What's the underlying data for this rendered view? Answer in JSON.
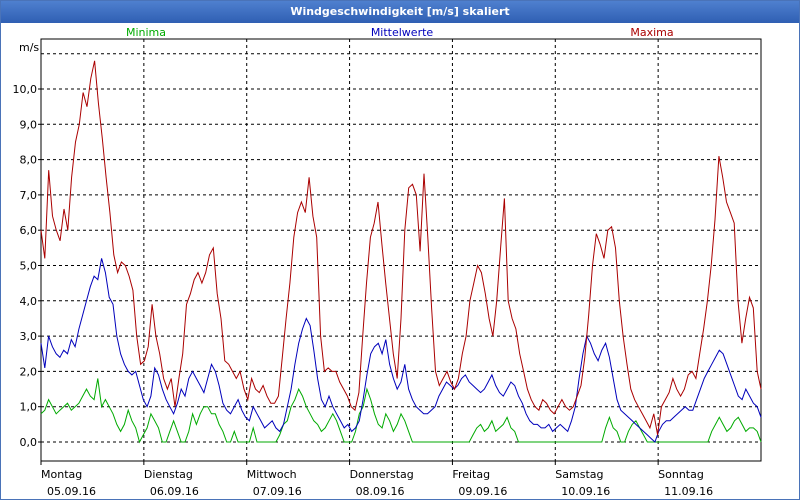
{
  "window": {
    "title": "Windgeschwindigkeit [m/s] skaliert"
  },
  "chart_data": {
    "type": "line",
    "title": "Windgeschwindigkeit [m/s] skaliert",
    "ylabel": "m/s",
    "ylim": [
      -0.6,
      11.5
    ],
    "xlim": [
      0,
      7
    ],
    "grid": true,
    "legend_placement": "top",
    "y_ticks": [
      "0,0",
      "1,0",
      "2,0",
      "3,0",
      "4,0",
      "5,0",
      "6,0",
      "7,0",
      "8,0",
      "9,0",
      "10,0"
    ],
    "x_ticks": [
      {
        "day": "Montag",
        "date": "05.09.16"
      },
      {
        "day": "Dienstag",
        "date": "06.09.16"
      },
      {
        "day": "Mittwoch",
        "date": "07.09.16"
      },
      {
        "day": "Donnerstag",
        "date": "08.09.16"
      },
      {
        "day": "Freitag",
        "date": "09.09.16"
      },
      {
        "day": "Samstag",
        "date": "10.09.16"
      },
      {
        "day": "Sonntag",
        "date": "11.09.16"
      }
    ],
    "series": [
      {
        "name": "Minima",
        "color": "#00aa00",
        "values": [
          0.8,
          0.9,
          1.2,
          1.0,
          0.8,
          0.9,
          1.0,
          1.1,
          0.9,
          1.0,
          1.1,
          1.3,
          1.5,
          1.3,
          1.2,
          1.8,
          1.0,
          1.2,
          1.0,
          0.8,
          0.5,
          0.3,
          0.5,
          0.9,
          0.6,
          0.4,
          0.0,
          0.2,
          0.4,
          0.8,
          0.6,
          0.4,
          0.0,
          0.0,
          0.3,
          0.6,
          0.3,
          0.0,
          0.0,
          0.3,
          0.8,
          0.5,
          0.8,
          1.0,
          1.0,
          0.8,
          0.8,
          0.5,
          0.3,
          0.0,
          0.0,
          0.3,
          0.0,
          0.0,
          0.0,
          0.0,
          0.4,
          0.0,
          0.0,
          0.0,
          0.0,
          0.0,
          0.0,
          0.2,
          0.5,
          0.6,
          1.0,
          1.2,
          1.5,
          1.3,
          1.0,
          0.8,
          0.6,
          0.5,
          0.3,
          0.4,
          0.6,
          0.8,
          0.6,
          0.3,
          0.0,
          0.0,
          0.0,
          0.3,
          0.8,
          1.0,
          1.5,
          1.2,
          0.8,
          0.5,
          0.4,
          0.8,
          0.6,
          0.3,
          0.5,
          0.8,
          0.6,
          0.3,
          0.0,
          0.0,
          0.0,
          0.0,
          0.0,
          0.0,
          0.0,
          0.0,
          0.0,
          0.0,
          0.0,
          0.0,
          0.0,
          0.0,
          0.0,
          0.0,
          0.2,
          0.4,
          0.5,
          0.3,
          0.4,
          0.6,
          0.3,
          0.4,
          0.5,
          0.7,
          0.4,
          0.3,
          0.0,
          0.0,
          0.0,
          0.0,
          0.0,
          0.0,
          0.0,
          0.0,
          0.0,
          0.0,
          0.0,
          0.0,
          0.0,
          0.0,
          0.0,
          0.0,
          0.0,
          0.0,
          0.0,
          0.0,
          0.0,
          0.0,
          0.0,
          0.4,
          0.7,
          0.4,
          0.3,
          0.0,
          0.0,
          0.3,
          0.5,
          0.6,
          0.4,
          0.2,
          0.0,
          0.0,
          0.0,
          0.0,
          0.0,
          0.0,
          0.0,
          0.0,
          0.0,
          0.0,
          0.0,
          0.0,
          0.0,
          0.0,
          0.0,
          0.0,
          0.0,
          0.3,
          0.5,
          0.7,
          0.5,
          0.3,
          0.4,
          0.6,
          0.7,
          0.5,
          0.3,
          0.4,
          0.4,
          0.3,
          0.0
        ]
      },
      {
        "name": "Mittelwerte",
        "color": "#0000bb",
        "values": [
          2.8,
          2.1,
          3.0,
          2.7,
          2.5,
          2.4,
          2.6,
          2.5,
          2.9,
          2.7,
          3.2,
          3.6,
          4.0,
          4.4,
          4.7,
          4.6,
          5.2,
          4.8,
          4.1,
          3.9,
          3.0,
          2.5,
          2.2,
          2.0,
          1.9,
          2.0,
          1.6,
          1.2,
          1.0,
          1.3,
          2.1,
          1.9,
          1.5,
          1.2,
          1.0,
          0.8,
          1.1,
          1.5,
          1.3,
          1.8,
          2.0,
          1.8,
          1.6,
          1.4,
          1.8,
          2.2,
          2.0,
          1.6,
          1.1,
          0.9,
          0.8,
          1.0,
          1.2,
          0.9,
          0.7,
          0.6,
          1.0,
          0.8,
          0.6,
          0.4,
          0.5,
          0.6,
          0.4,
          0.3,
          0.5,
          1.0,
          1.5,
          2.2,
          2.8,
          3.2,
          3.5,
          3.3,
          2.6,
          1.8,
          1.2,
          1.0,
          1.3,
          1.0,
          0.8,
          0.6,
          0.4,
          0.5,
          0.3,
          0.4,
          0.6,
          1.2,
          1.9,
          2.5,
          2.7,
          2.8,
          2.5,
          2.9,
          2.2,
          1.8,
          1.5,
          1.7,
          2.2,
          1.5,
          1.2,
          1.0,
          0.9,
          0.8,
          0.8,
          0.9,
          1.0,
          1.3,
          1.5,
          1.7,
          1.6,
          1.5,
          1.6,
          1.8,
          1.9,
          1.7,
          1.6,
          1.5,
          1.4,
          1.5,
          1.7,
          1.9,
          1.6,
          1.4,
          1.3,
          1.5,
          1.7,
          1.6,
          1.3,
          1.1,
          0.8,
          0.6,
          0.5,
          0.5,
          0.4,
          0.4,
          0.5,
          0.3,
          0.4,
          0.5,
          0.4,
          0.3,
          0.6,
          1.0,
          1.8,
          2.5,
          3.0,
          2.8,
          2.5,
          2.3,
          2.6,
          2.8,
          2.4,
          1.8,
          1.2,
          0.9,
          0.8,
          0.7,
          0.6,
          0.5,
          0.4,
          0.3,
          0.2,
          0.1,
          0.0,
          0.3,
          0.5,
          0.6,
          0.6,
          0.7,
          0.8,
          0.9,
          1.0,
          0.9,
          0.9,
          1.2,
          1.5,
          1.8,
          2.0,
          2.2,
          2.4,
          2.6,
          2.5,
          2.2,
          1.9,
          1.6,
          1.3,
          1.2,
          1.5,
          1.3,
          1.1,
          1.0,
          0.7
        ]
      },
      {
        "name": "Maxima",
        "color": "#aa0000",
        "values": [
          6.0,
          5.2,
          7.7,
          6.4,
          6.0,
          5.7,
          6.6,
          6.0,
          7.5,
          8.5,
          9.0,
          9.9,
          9.5,
          10.3,
          10.8,
          9.6,
          8.6,
          7.5,
          6.5,
          5.3,
          4.8,
          5.1,
          5.0,
          4.7,
          4.3,
          3.0,
          2.2,
          2.3,
          2.7,
          3.9,
          3.0,
          2.5,
          1.8,
          1.5,
          1.8,
          1.0,
          1.8,
          2.5,
          3.9,
          4.2,
          4.6,
          4.8,
          4.5,
          4.8,
          5.3,
          5.5,
          4.2,
          3.5,
          2.3,
          2.2,
          2.0,
          1.8,
          2.0,
          1.5,
          1.2,
          1.8,
          1.5,
          1.4,
          1.6,
          1.3,
          1.1,
          1.1,
          1.3,
          2.4,
          3.5,
          4.5,
          5.8,
          6.5,
          6.8,
          6.5,
          7.5,
          6.4,
          5.8,
          3.0,
          2.0,
          2.1,
          2.0,
          2.0,
          1.7,
          1.5,
          1.3,
          1.0,
          0.9,
          1.4,
          3.0,
          4.5,
          5.8,
          6.2,
          6.8,
          5.6,
          4.5,
          3.5,
          2.5,
          1.8,
          3.5,
          6.0,
          7.2,
          7.3,
          7.0,
          5.4,
          7.6,
          5.8,
          3.8,
          2.0,
          1.6,
          1.8,
          2.0,
          1.7,
          1.5,
          1.8,
          2.5,
          3.0,
          4.0,
          4.5,
          5.0,
          4.8,
          4.2,
          3.5,
          3.0,
          4.0,
          5.5,
          6.9,
          4.0,
          3.5,
          3.2,
          2.5,
          2.0,
          1.5,
          1.2,
          1.0,
          0.9,
          1.2,
          1.1,
          0.9,
          0.8,
          1.0,
          1.2,
          1.0,
          0.9,
          1.0,
          1.3,
          1.6,
          2.4,
          3.6,
          5.0,
          5.9,
          5.6,
          5.2,
          6.0,
          6.1,
          5.5,
          4.0,
          3.0,
          2.2,
          1.5,
          1.2,
          1.0,
          0.8,
          0.6,
          0.4,
          0.8,
          0.2,
          1.0,
          1.2,
          1.4,
          1.8,
          1.5,
          1.3,
          1.5,
          1.9,
          2.0,
          1.8,
          2.5,
          3.2,
          4.0,
          5.0,
          6.3,
          8.1,
          7.5,
          6.8,
          6.5,
          6.2,
          4.0,
          2.8,
          3.5,
          4.1,
          3.8,
          2.0,
          1.5
        ]
      }
    ]
  }
}
